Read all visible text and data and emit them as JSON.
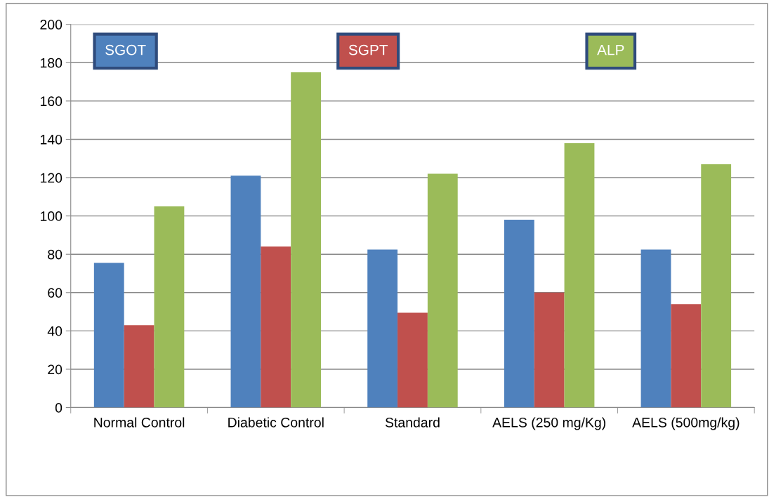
{
  "chart_data": {
    "type": "bar",
    "categories": [
      "Normal Control",
      "Diabetic Control",
      "Standard",
      "AELS (250 mg/Kg)",
      "AELS (500mg/kg)"
    ],
    "series": [
      {
        "name": "SGOT",
        "color": "#4f81bd",
        "values": [
          75.5,
          121,
          82.5,
          98,
          82.5
        ]
      },
      {
        "name": "SGPT",
        "color": "#c0504d",
        "values": [
          43,
          84,
          49.5,
          60,
          54
        ]
      },
      {
        "name": "ALP",
        "color": "#9bbb59",
        "values": [
          105,
          175,
          122,
          138,
          127
        ]
      }
    ],
    "ylim": [
      0,
      200
    ],
    "yticks": [
      0,
      20,
      40,
      60,
      80,
      100,
      120,
      140,
      160,
      180,
      200
    ],
    "grid": "y",
    "legend": "top"
  }
}
